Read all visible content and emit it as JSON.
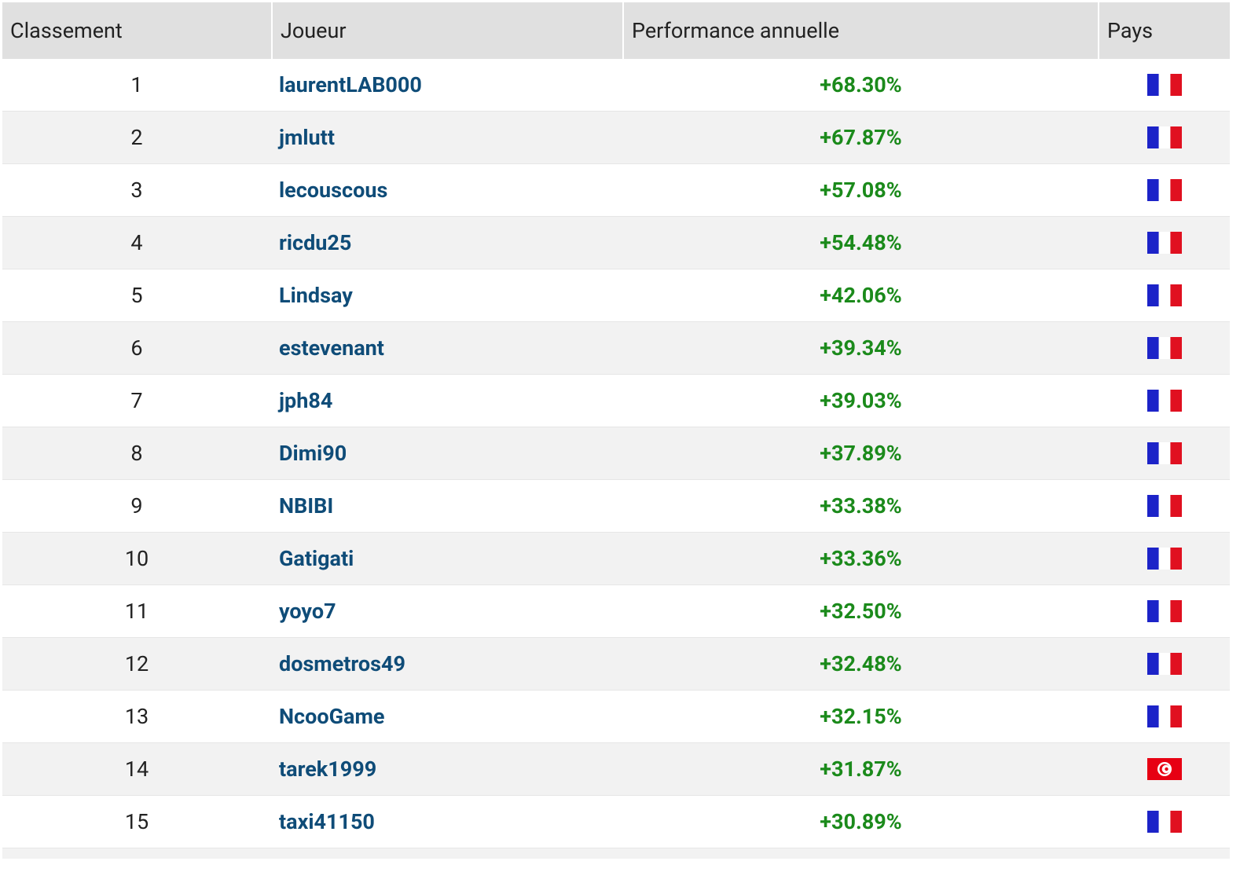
{
  "table": {
    "headers": [
      "Classement",
      "Joueur",
      "Performance annuelle",
      "Pays"
    ],
    "rows": [
      {
        "rank": "1",
        "player": "laurentLAB000",
        "performance": "+68.30%",
        "flag": "fr"
      },
      {
        "rank": "2",
        "player": "jmlutt",
        "performance": "+67.87%",
        "flag": "fr"
      },
      {
        "rank": "3",
        "player": "lecouscous",
        "performance": "+57.08%",
        "flag": "fr"
      },
      {
        "rank": "4",
        "player": "ricdu25",
        "performance": "+54.48%",
        "flag": "fr"
      },
      {
        "rank": "5",
        "player": "Lindsay",
        "performance": "+42.06%",
        "flag": "fr"
      },
      {
        "rank": "6",
        "player": "estevenant",
        "performance": "+39.34%",
        "flag": "fr"
      },
      {
        "rank": "7",
        "player": "jph84",
        "performance": "+39.03%",
        "flag": "fr"
      },
      {
        "rank": "8",
        "player": "Dimi90",
        "performance": "+37.89%",
        "flag": "fr"
      },
      {
        "rank": "9",
        "player": "NBIBI",
        "performance": "+33.38%",
        "flag": "fr"
      },
      {
        "rank": "10",
        "player": "Gatigati",
        "performance": "+33.36%",
        "flag": "fr"
      },
      {
        "rank": "11",
        "player": "yoyo7",
        "performance": "+32.50%",
        "flag": "fr"
      },
      {
        "rank": "12",
        "player": "dosmetros49",
        "performance": "+32.48%",
        "flag": "fr"
      },
      {
        "rank": "13",
        "player": "NcooGame",
        "performance": "+32.15%",
        "flag": "fr"
      },
      {
        "rank": "14",
        "player": "tarek1999",
        "performance": "+31.87%",
        "flag": "tn"
      },
      {
        "rank": "15",
        "player": "taxi41150",
        "performance": "+30.89%",
        "flag": "fr"
      }
    ]
  }
}
